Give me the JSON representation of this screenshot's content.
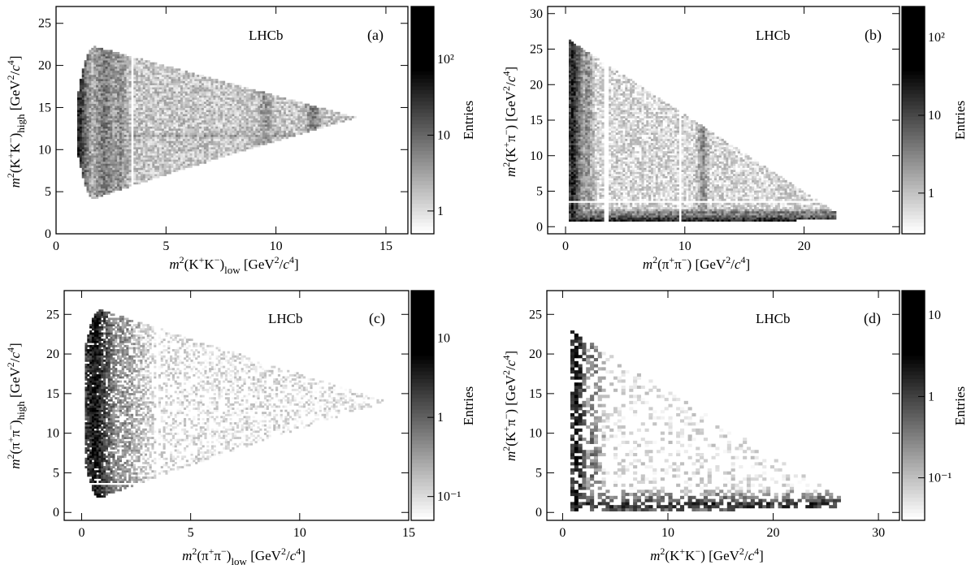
{
  "chart_data": [
    {
      "type": "heatmap",
      "panel_label": "(a)",
      "experiment_label": "LHCb",
      "xlabel": "m²(K⁺K⁻)low [GeV²/c⁴]",
      "xlabel_parts": {
        "base": "m",
        "power": "2",
        "particles": "(K",
        "sup1": "+",
        "mid": "K",
        "sup2": "−",
        "close": ")",
        "sub": "low",
        "units": " [GeV",
        "units_pow": "2",
        "units_mid": "/",
        "units_c": "c",
        "units_cpow": "4",
        "units_close": "]"
      },
      "ylabel": "m²(K⁺K⁻)high [GeV²/c⁴]",
      "xlim": [
        0,
        16
      ],
      "ylim": [
        0,
        27
      ],
      "xticks": [
        0,
        5,
        10,
        15
      ],
      "yticks": [
        0,
        5,
        10,
        15,
        20,
        25
      ],
      "colorbar": {
        "label": "Entries",
        "scale": "log",
        "range": [
          0.5,
          500
        ],
        "ticks": [
          1,
          10,
          100
        ],
        "tick_labels": [
          "1",
          "10",
          "10²"
        ]
      },
      "boundary": {
        "x_min": 1.0,
        "x_max": 13.7,
        "y_top": 22.8,
        "y_bottom": 3.3,
        "y_apex": 13.8
      },
      "bands": [
        {
          "axis": "x",
          "value": 1.04,
          "width": 0.25,
          "intensity": 0.85
        },
        {
          "axis": "x",
          "value": 2.2,
          "width": 0.5,
          "intensity": 0.55
        },
        {
          "axis": "x",
          "value": 2.9,
          "width": 0.3,
          "intensity": 0.45
        },
        {
          "axis": "x",
          "value": 9.5,
          "width": 0.15,
          "intensity": 0.45
        },
        {
          "axis": "x",
          "value": 11.7,
          "width": 0.15,
          "intensity": 0.55
        },
        {
          "axis": "y",
          "value": 11.7,
          "width": 0.15,
          "intensity": 0.4
        }
      ],
      "vetoes": [
        {
          "axis": "x",
          "value": 3.45,
          "width": 0.15
        },
        {
          "axis": "y",
          "value": 3.4,
          "width": 0.1
        }
      ],
      "base_intensity": 0.22,
      "density": 0.96
    },
    {
      "type": "heatmap",
      "panel_label": "(b)",
      "experiment_label": "LHCb",
      "xlabel": "m²(π⁺π⁻) [GeV²/c⁴]",
      "ylabel": "m²(K⁺π⁻) [GeV²/c⁴]",
      "xlim": [
        -1.5,
        28
      ],
      "ylim": [
        -1,
        31
      ],
      "xticks": [
        0,
        10,
        20
      ],
      "yticks": [
        0,
        5,
        10,
        15,
        20,
        25,
        30
      ],
      "colorbar": {
        "label": "Entries",
        "scale": "log",
        "range": [
          0.3,
          250
        ],
        "ticks": [
          1,
          10,
          100
        ],
        "tick_labels": [
          "1",
          "10",
          "10²"
        ]
      },
      "boundary": {
        "x_min": 0.3,
        "x_max": 22.6,
        "y_top": 26.3,
        "y_bottom": 0.6
      },
      "bands": [
        {
          "axis": "x",
          "value": 0.6,
          "width": 0.6,
          "intensity": 0.9
        },
        {
          "axis": "x",
          "value": 1.8,
          "width": 0.5,
          "intensity": 0.45
        },
        {
          "axis": "x",
          "value": 11.5,
          "width": 0.25,
          "intensity": 0.5
        },
        {
          "axis": "y",
          "value": 0.8,
          "width": 1.1,
          "intensity": 0.9
        },
        {
          "axis": "y",
          "value": 2.0,
          "width": 0.25,
          "intensity": 0.55
        }
      ],
      "vetoes": [
        {
          "axis": "x",
          "value": 3.4,
          "width": 0.3
        },
        {
          "axis": "x",
          "value": 9.6,
          "width": 0.35
        },
        {
          "axis": "y",
          "value": 3.5,
          "width": 0.15
        }
      ],
      "base_intensity": 0.16,
      "density": 0.85
    },
    {
      "type": "heatmap",
      "panel_label": "(c)",
      "experiment_label": "LHCb",
      "xlabel": "m²(π⁺π⁻)low [GeV²/c⁴]",
      "ylabel": "m²(π⁺π⁻)high [GeV²/c⁴]",
      "xlim": [
        -0.8,
        15
      ],
      "ylim": [
        -1,
        28
      ],
      "xticks": [
        0,
        5,
        10,
        15
      ],
      "yticks": [
        0,
        5,
        10,
        15,
        20,
        25
      ],
      "colorbar": {
        "label": "Entries",
        "scale": "log",
        "range": [
          0.05,
          40
        ],
        "ticks": [
          0.1,
          1,
          10
        ],
        "tick_labels": [
          "10⁻¹",
          "1",
          "10"
        ]
      },
      "boundary": {
        "x_min": 0.1,
        "x_max": 14.0,
        "y_top": 26.3,
        "y_bottom": 0.8,
        "y_apex": 14.0
      },
      "bands": [
        {
          "axis": "x",
          "value": 0.6,
          "width": 0.9,
          "intensity": 0.95
        },
        {
          "axis": "x",
          "value": 1.9,
          "width": 1.0,
          "intensity": 0.45
        }
      ],
      "vetoes": [
        {
          "axis": "x",
          "value": 3.5,
          "width": 0.12
        },
        {
          "axis": "y",
          "value": 3.6,
          "width": 0.1
        }
      ],
      "base_intensity": 0.1,
      "density": 0.5
    },
    {
      "type": "heatmap",
      "panel_label": "(d)",
      "experiment_label": "LHCb",
      "xlabel": "m²(K⁺K⁻) [GeV²/c⁴]",
      "ylabel": "m²(K⁺π⁻) [GeV²/c⁴]",
      "xlim": [
        -1.5,
        32
      ],
      "ylim": [
        -1,
        28
      ],
      "xticks": [
        0,
        10,
        20,
        30
      ],
      "yticks": [
        0,
        5,
        10,
        15,
        20,
        25
      ],
      "colorbar": {
        "label": "Entries",
        "scale": "log",
        "range": [
          0.03,
          20
        ],
        "ticks": [
          0.1,
          1,
          10
        ],
        "tick_labels": [
          "10⁻¹",
          "1",
          "10"
        ]
      },
      "boundary": {
        "x_min": 0.9,
        "x_max": 26.5,
        "y_top": 22.8,
        "y_bottom": 0.2
      },
      "bands": [
        {
          "axis": "x",
          "value": 1.3,
          "width": 1.0,
          "intensity": 0.95
        },
        {
          "axis": "x",
          "value": 2.8,
          "width": 0.9,
          "intensity": 0.55
        },
        {
          "axis": "y",
          "value": 1.0,
          "width": 1.3,
          "intensity": 0.85
        }
      ],
      "vetoes": [],
      "base_intensity": 0.1,
      "density": 0.3
    }
  ]
}
